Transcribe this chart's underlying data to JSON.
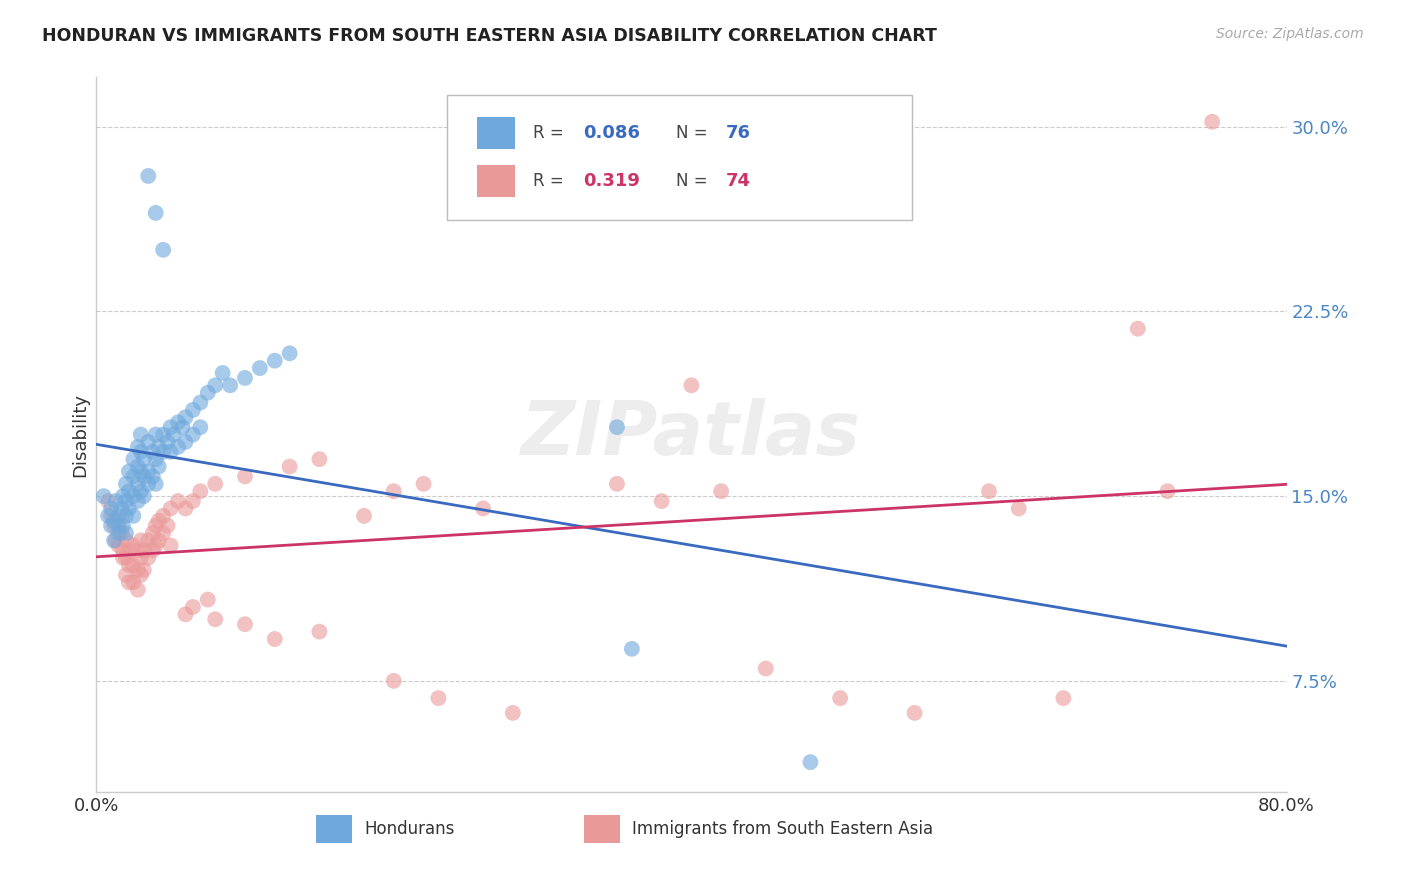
{
  "title": "HONDURAN VS IMMIGRANTS FROM SOUTH EASTERN ASIA DISABILITY CORRELATION CHART",
  "source": "Source: ZipAtlas.com",
  "ylabel": "Disability",
  "yticks": [
    0.075,
    0.15,
    0.225,
    0.3
  ],
  "ytick_labels": [
    "7.5%",
    "15.0%",
    "22.5%",
    "30.0%"
  ],
  "xlim": [
    0.0,
    0.8
  ],
  "ylim": [
    0.03,
    0.32
  ],
  "legend_blue_r": "0.086",
  "legend_blue_n": "76",
  "legend_pink_r": "0.319",
  "legend_pink_n": "74",
  "blue_color": "#6fa8dc",
  "pink_color": "#ea9999",
  "blue_line_color": "#3a6abf",
  "pink_line_color": "#cc3366",
  "watermark": "ZIPatlas",
  "blue_label": "Hondurans",
  "pink_label": "Immigrants from South Eastern Asia",
  "blue_scatter": [
    [
      0.005,
      0.15
    ],
    [
      0.008,
      0.142
    ],
    [
      0.01,
      0.138
    ],
    [
      0.01,
      0.145
    ],
    [
      0.012,
      0.132
    ],
    [
      0.012,
      0.14
    ],
    [
      0.013,
      0.148
    ],
    [
      0.015,
      0.135
    ],
    [
      0.015,
      0.142
    ],
    [
      0.015,
      0.138
    ],
    [
      0.017,
      0.145
    ],
    [
      0.018,
      0.15
    ],
    [
      0.018,
      0.138
    ],
    [
      0.02,
      0.155
    ],
    [
      0.02,
      0.148
    ],
    [
      0.02,
      0.142
    ],
    [
      0.02,
      0.135
    ],
    [
      0.022,
      0.16
    ],
    [
      0.022,
      0.152
    ],
    [
      0.022,
      0.145
    ],
    [
      0.025,
      0.165
    ],
    [
      0.025,
      0.158
    ],
    [
      0.025,
      0.15
    ],
    [
      0.025,
      0.142
    ],
    [
      0.028,
      0.17
    ],
    [
      0.028,
      0.162
    ],
    [
      0.028,
      0.155
    ],
    [
      0.028,
      0.148
    ],
    [
      0.03,
      0.175
    ],
    [
      0.03,
      0.168
    ],
    [
      0.03,
      0.16
    ],
    [
      0.03,
      0.152
    ],
    [
      0.032,
      0.158
    ],
    [
      0.032,
      0.15
    ],
    [
      0.032,
      0.165
    ],
    [
      0.035,
      0.172
    ],
    [
      0.035,
      0.16
    ],
    [
      0.035,
      0.155
    ],
    [
      0.038,
      0.168
    ],
    [
      0.038,
      0.158
    ],
    [
      0.04,
      0.175
    ],
    [
      0.04,
      0.165
    ],
    [
      0.04,
      0.155
    ],
    [
      0.042,
      0.17
    ],
    [
      0.042,
      0.162
    ],
    [
      0.045,
      0.175
    ],
    [
      0.045,
      0.168
    ],
    [
      0.048,
      0.172
    ],
    [
      0.05,
      0.178
    ],
    [
      0.05,
      0.168
    ],
    [
      0.052,
      0.175
    ],
    [
      0.055,
      0.18
    ],
    [
      0.055,
      0.17
    ],
    [
      0.058,
      0.178
    ],
    [
      0.06,
      0.182
    ],
    [
      0.06,
      0.172
    ],
    [
      0.065,
      0.185
    ],
    [
      0.065,
      0.175
    ],
    [
      0.07,
      0.188
    ],
    [
      0.07,
      0.178
    ],
    [
      0.075,
      0.192
    ],
    [
      0.08,
      0.195
    ],
    [
      0.085,
      0.2
    ],
    [
      0.09,
      0.195
    ],
    [
      0.1,
      0.198
    ],
    [
      0.11,
      0.202
    ],
    [
      0.12,
      0.205
    ],
    [
      0.13,
      0.208
    ],
    [
      0.035,
      0.28
    ],
    [
      0.04,
      0.265
    ],
    [
      0.045,
      0.25
    ],
    [
      0.35,
      0.178
    ],
    [
      0.36,
      0.088
    ],
    [
      0.48,
      0.042
    ]
  ],
  "pink_scatter": [
    [
      0.008,
      0.148
    ],
    [
      0.01,
      0.142
    ],
    [
      0.012,
      0.138
    ],
    [
      0.013,
      0.132
    ],
    [
      0.015,
      0.14
    ],
    [
      0.015,
      0.13
    ],
    [
      0.017,
      0.135
    ],
    [
      0.018,
      0.128
    ],
    [
      0.018,
      0.125
    ],
    [
      0.02,
      0.132
    ],
    [
      0.02,
      0.125
    ],
    [
      0.02,
      0.118
    ],
    [
      0.022,
      0.128
    ],
    [
      0.022,
      0.122
    ],
    [
      0.022,
      0.115
    ],
    [
      0.025,
      0.13
    ],
    [
      0.025,
      0.122
    ],
    [
      0.025,
      0.115
    ],
    [
      0.028,
      0.128
    ],
    [
      0.028,
      0.12
    ],
    [
      0.028,
      0.112
    ],
    [
      0.03,
      0.132
    ],
    [
      0.03,
      0.125
    ],
    [
      0.03,
      0.118
    ],
    [
      0.032,
      0.128
    ],
    [
      0.032,
      0.12
    ],
    [
      0.035,
      0.132
    ],
    [
      0.035,
      0.125
    ],
    [
      0.038,
      0.135
    ],
    [
      0.038,
      0.128
    ],
    [
      0.04,
      0.138
    ],
    [
      0.04,
      0.13
    ],
    [
      0.042,
      0.14
    ],
    [
      0.042,
      0.132
    ],
    [
      0.045,
      0.142
    ],
    [
      0.045,
      0.135
    ],
    [
      0.048,
      0.138
    ],
    [
      0.05,
      0.145
    ],
    [
      0.05,
      0.13
    ],
    [
      0.055,
      0.148
    ],
    [
      0.06,
      0.145
    ],
    [
      0.06,
      0.102
    ],
    [
      0.065,
      0.148
    ],
    [
      0.065,
      0.105
    ],
    [
      0.07,
      0.152
    ],
    [
      0.075,
      0.108
    ],
    [
      0.08,
      0.155
    ],
    [
      0.08,
      0.1
    ],
    [
      0.1,
      0.158
    ],
    [
      0.1,
      0.098
    ],
    [
      0.12,
      0.092
    ],
    [
      0.13,
      0.162
    ],
    [
      0.15,
      0.165
    ],
    [
      0.15,
      0.095
    ],
    [
      0.18,
      0.142
    ],
    [
      0.2,
      0.152
    ],
    [
      0.2,
      0.075
    ],
    [
      0.22,
      0.155
    ],
    [
      0.23,
      0.068
    ],
    [
      0.26,
      0.145
    ],
    [
      0.28,
      0.062
    ],
    [
      0.35,
      0.155
    ],
    [
      0.38,
      0.148
    ],
    [
      0.4,
      0.195
    ],
    [
      0.42,
      0.152
    ],
    [
      0.45,
      0.08
    ],
    [
      0.5,
      0.068
    ],
    [
      0.55,
      0.062
    ],
    [
      0.6,
      0.152
    ],
    [
      0.62,
      0.145
    ],
    [
      0.65,
      0.068
    ],
    [
      0.7,
      0.218
    ],
    [
      0.72,
      0.152
    ],
    [
      0.75,
      0.302
    ]
  ]
}
